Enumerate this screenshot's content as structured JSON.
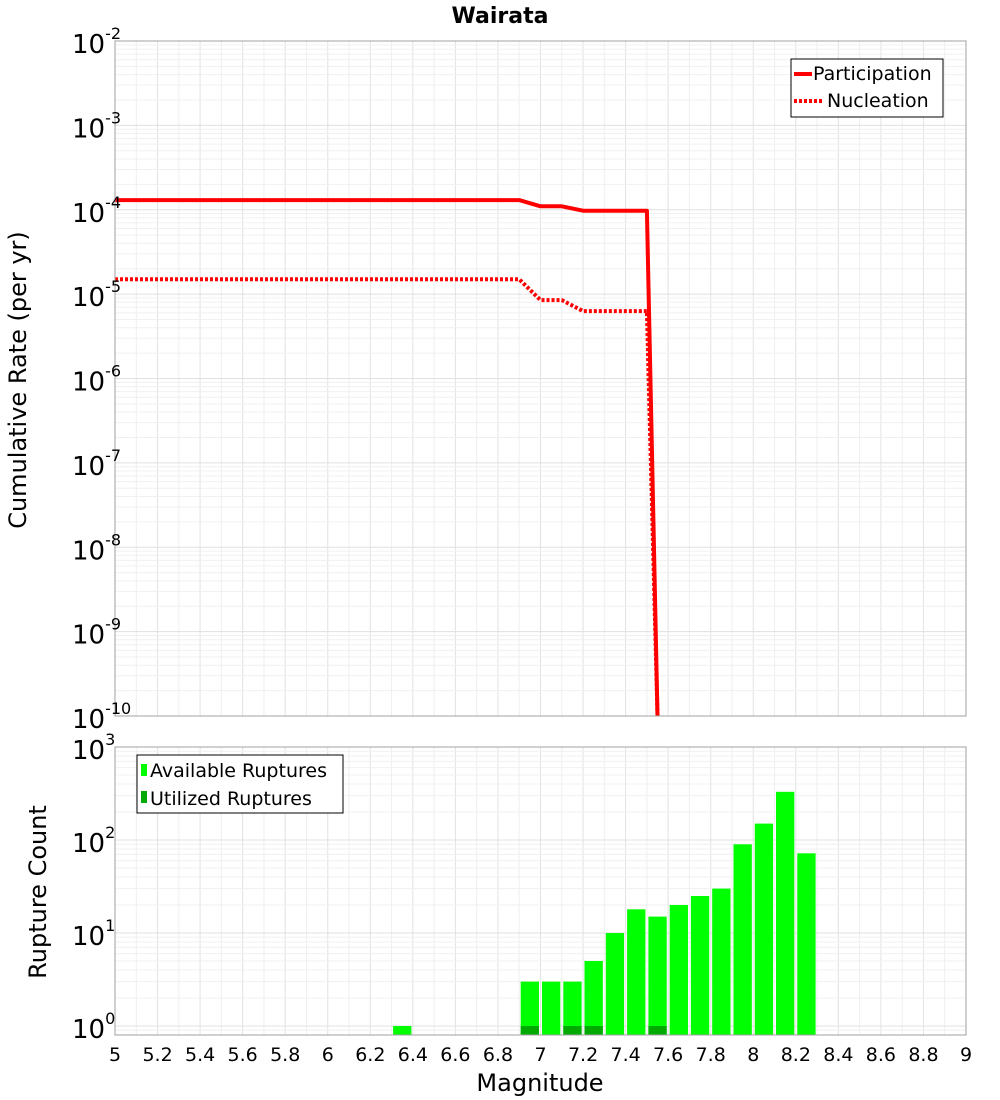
{
  "chart_data": [
    {
      "type": "line",
      "title": "Wairata",
      "xlabel": "",
      "ylabel": "Cumulative Rate (per yr)",
      "xlim": [
        5,
        9
      ],
      "ylim": [
        1e-10,
        0.01
      ],
      "yscale": "log",
      "y_tick_bases": [
        "10",
        "10",
        "10",
        "10",
        "10",
        "10",
        "10",
        "10",
        "10"
      ],
      "y_tick_exponents": [
        "-2",
        "-3",
        "-4",
        "-5",
        "-6",
        "-7",
        "-8",
        "-9",
        "-10"
      ],
      "grid": true,
      "legend": "top-right",
      "series": [
        {
          "name": "Participation",
          "style": "solid",
          "color": "#ff0000",
          "x": [
            5.0,
            6.9,
            7.0,
            7.1,
            7.2,
            7.3,
            7.4,
            7.5,
            7.55
          ],
          "y": [
            0.00013,
            0.00013,
            0.00011,
            0.00011,
            9.75e-05,
            9.75e-05,
            9.75e-05,
            9.75e-05,
            1e-10
          ]
        },
        {
          "name": "Nucleation",
          "style": "dotted",
          "color": "#ff0000",
          "x": [
            5.0,
            6.9,
            7.0,
            7.1,
            7.2,
            7.3,
            7.4,
            7.5,
            7.55
          ],
          "y": [
            1.5e-05,
            1.5e-05,
            8.5e-06,
            8.5e-06,
            6.3e-06,
            6.3e-06,
            6.3e-06,
            6.3e-06,
            1e-10
          ]
        }
      ]
    },
    {
      "type": "bar",
      "title": "",
      "xlabel": "Magnitude",
      "ylabel": "Rupture Count",
      "xlim": [
        5,
        9
      ],
      "ylim": [
        0.8,
        1000
      ],
      "yscale": "log",
      "x_ticks": [
        "5",
        "5.2",
        "5.4",
        "5.6",
        "5.8",
        "6",
        "6.2",
        "6.4",
        "6.6",
        "6.8",
        "7",
        "7.2",
        "7.4",
        "7.6",
        "7.8",
        "8",
        "8.2",
        "8.4",
        "8.6",
        "8.8",
        "9"
      ],
      "y_tick_bases": [
        "10",
        "10",
        "10",
        "10"
      ],
      "y_tick_exponents": [
        "3",
        "2",
        "1",
        "0"
      ],
      "grid": true,
      "legend": "top-left",
      "bin_width": 0.1,
      "series": [
        {
          "name": "Available Ruptures",
          "color": "#00ff00",
          "x": [
            6.35,
            6.95,
            7.05,
            7.15,
            7.25,
            7.35,
            7.45,
            7.55,
            7.65,
            7.75,
            7.85,
            7.95,
            8.05,
            8.15,
            8.25
          ],
          "values": [
            1,
            3,
            3,
            3,
            5,
            10,
            18,
            15,
            20,
            25,
            30,
            90,
            150,
            330,
            72
          ]
        },
        {
          "name": "Utilized Ruptures",
          "color": "#00aa00",
          "x": [
            6.95,
            7.15,
            7.25,
            7.55
          ],
          "values": [
            1,
            1,
            1,
            1
          ]
        }
      ]
    }
  ]
}
